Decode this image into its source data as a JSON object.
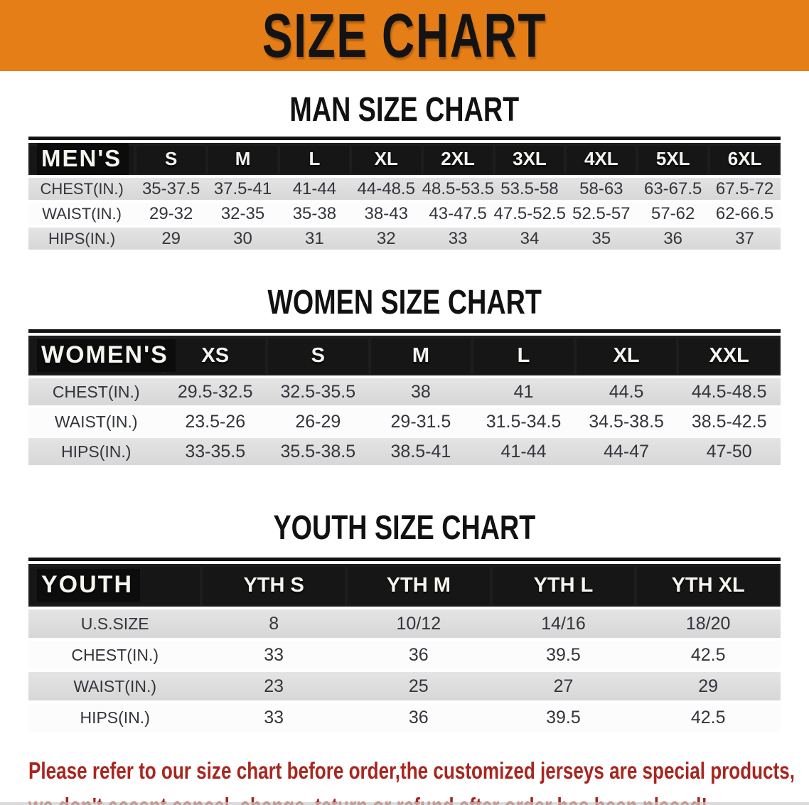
{
  "banner": {
    "title": "SIZE CHART",
    "bg_color": "#e67e17",
    "text_color": "#131313"
  },
  "sections": [
    {
      "heading": "MAN SIZE CHART",
      "label": "MEN'S",
      "columns": [
        "S",
        "M",
        "L",
        "XL",
        "2XL",
        "3XL",
        "4XL",
        "5XL",
        "6XL"
      ],
      "rows": [
        {
          "label": "CHEST(IN.)",
          "values": [
            "35-37.5",
            "37.5-41",
            "41-44",
            "44-48.5",
            "48.5-53.5",
            "53.5-58",
            "58-63",
            "63-67.5",
            "67.5-72"
          ]
        },
        {
          "label": "WAIST(IN.)",
          "values": [
            "29-32",
            "32-35",
            "35-38",
            "38-43",
            "43-47.5",
            "47.5-52.5",
            "52.5-57",
            "57-62",
            "62-66.5"
          ]
        },
        {
          "label": "HIPS(IN.)",
          "values": [
            "29",
            "30",
            "31",
            "32",
            "33",
            "34",
            "35",
            "36",
            "37"
          ]
        }
      ]
    },
    {
      "heading": "WOMEN SIZE CHART",
      "label": "WOMEN'S",
      "columns": [
        "XS",
        "S",
        "M",
        "L",
        "XL",
        "XXL"
      ],
      "rows": [
        {
          "label": "CHEST(IN.)",
          "values": [
            "29.5-32.5",
            "32.5-35.5",
            "38",
            "41",
            "44.5",
            "44.5-48.5"
          ]
        },
        {
          "label": "WAIST(IN.)",
          "values": [
            "23.5-26",
            "26-29",
            "29-31.5",
            "31.5-34.5",
            "34.5-38.5",
            "38.5-42.5"
          ]
        },
        {
          "label": "HIPS(IN.)",
          "values": [
            "33-35.5",
            "35.5-38.5",
            "38.5-41",
            "41-44",
            "44-47",
            "47-50"
          ]
        }
      ]
    },
    {
      "heading": "YOUTH SIZE CHART",
      "label": "YOUTH",
      "columns": [
        "YTH S",
        "YTH M",
        "YTH L",
        "YTH XL"
      ],
      "rows": [
        {
          "label": "U.S.SIZE",
          "values": [
            "8",
            "10/12",
            "14/16",
            "18/20"
          ]
        },
        {
          "label": "CHEST(IN.)",
          "values": [
            "33",
            "36",
            "39.5",
            "42.5"
          ]
        },
        {
          "label": "WAIST(IN.)",
          "values": [
            "23",
            "25",
            "27",
            "29"
          ]
        },
        {
          "label": "HIPS(IN.)",
          "values": [
            "33",
            "36",
            "39.5",
            "42.5"
          ]
        }
      ]
    }
  ],
  "footer": {
    "line1": "Please refer to our size chart before order,the customized jerseys are special products,",
    "line2": "we don't accept cancel, change, teturn or refund after order has been placed!",
    "text_color": "#a8261f"
  },
  "colors": {
    "table_header_bg": "#161616",
    "row_gray": "#dcdcdc",
    "row_white": "#fcfcfc"
  }
}
